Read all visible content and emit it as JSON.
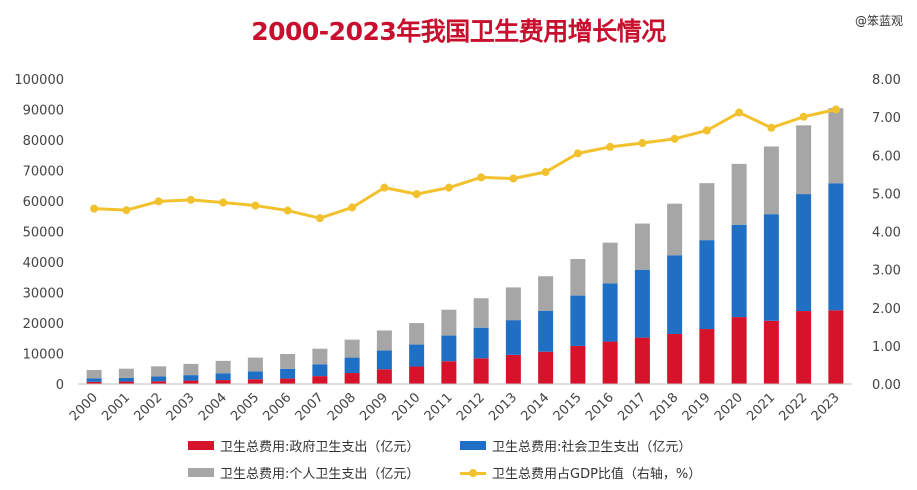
{
  "chart_data": {
    "type": "bar",
    "title": "2000-2023年我国卫生费用增长情况",
    "watermark": "@笨蓝观",
    "categories": [
      "2000",
      "2001",
      "2002",
      "2003",
      "2004",
      "2005",
      "2006",
      "2007",
      "2008",
      "2009",
      "2010",
      "2011",
      "2012",
      "2013",
      "2014",
      "2015",
      "2016",
      "2017",
      "2018",
      "2019",
      "2020",
      "2021",
      "2022",
      "2023"
    ],
    "series": [
      {
        "name": "卫生总费用:政府卫生支出（亿元）",
        "type": "bar",
        "stack": "total",
        "color": "#d7132b",
        "values": [
          710,
          800,
          910,
          1120,
          1290,
          1550,
          1780,
          2580,
          3590,
          4820,
          5730,
          7460,
          8430,
          9550,
          10580,
          12480,
          13910,
          15210,
          16400,
          18020,
          21940,
          20720,
          23920,
          24150
        ]
      },
      {
        "name": "卫生总费用:社会卫生支出（亿元）",
        "type": "bar",
        "stack": "total",
        "color": "#1f6fc5",
        "values": [
          1170,
          1210,
          1540,
          1790,
          2230,
          2590,
          3210,
          3890,
          5070,
          6150,
          7200,
          8420,
          10030,
          11390,
          13440,
          16510,
          19100,
          22260,
          25810,
          29150,
          30270,
          34960,
          38350,
          41670
        ]
      },
      {
        "name": "卫生总费用:个人卫生支出（亿元）",
        "type": "bar",
        "stack": "total",
        "color": "#a6a6a6",
        "values": [
          2710,
          3010,
          3340,
          3680,
          4070,
          4520,
          4850,
          5100,
          5880,
          6570,
          7050,
          8470,
          9660,
          10730,
          11300,
          11990,
          13340,
          15130,
          16910,
          18670,
          19960,
          22200,
          22540,
          24610
        ]
      },
      {
        "name": "卫生总费用占GDP比值（右轴，%）",
        "type": "line",
        "axis": "right",
        "color": "#f2c12e",
        "values": [
          4.6,
          4.56,
          4.79,
          4.83,
          4.76,
          4.68,
          4.55,
          4.35,
          4.63,
          5.15,
          4.98,
          5.15,
          5.42,
          5.39,
          5.56,
          6.05,
          6.22,
          6.32,
          6.43,
          6.65,
          7.12,
          6.72,
          7.01,
          7.2
        ]
      }
    ],
    "ylim_left": [
      0,
      100000
    ],
    "yticks_left": [
      "0",
      "10000",
      "20000",
      "30000",
      "40000",
      "50000",
      "60000",
      "70000",
      "80000",
      "90000",
      "100000"
    ],
    "ylim_right": [
      0,
      8
    ],
    "yticks_right": [
      "0.00",
      "1.00",
      "2.00",
      "3.00",
      "4.00",
      "5.00",
      "6.00",
      "7.00",
      "8.00"
    ],
    "grid": false,
    "legend_position": "bottom"
  }
}
